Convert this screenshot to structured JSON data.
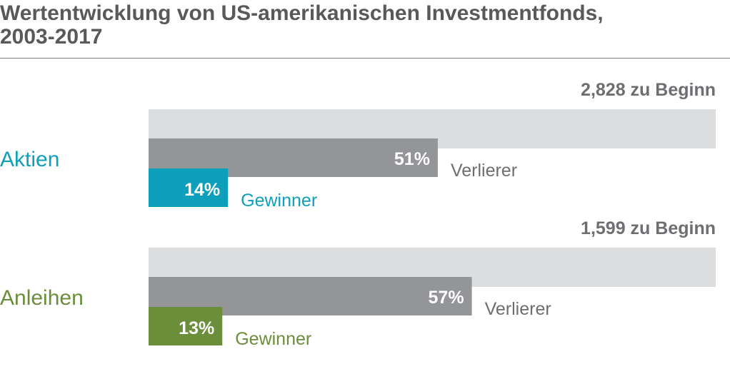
{
  "title_lines": [
    "Wertentwicklung von US-amerikanischen Investmentfonds,",
    "2003-2017"
  ],
  "colors": {
    "background_bar": "#dcdddf",
    "losers_bar": "#939598",
    "losers_text": "#6d6e71",
    "start_text": "#6d6e71"
  },
  "chart_data": {
    "type": "bar",
    "groups": [
      {
        "label": "Aktien",
        "color": "#0e9fba",
        "start_label": "2,828 zu Beginn",
        "losers_value": 51,
        "losers_value_label": "51%",
        "losers_label": "Verlierer",
        "winners_value": 14,
        "winners_value_label": "14%",
        "winners_label": "Gewinner"
      },
      {
        "label": "Anleihen",
        "color": "#6a8e3a",
        "start_label": "1,599 zu Beginn",
        "losers_value": 57,
        "losers_value_label": "57%",
        "losers_label": "Verlierer",
        "winners_value": 13,
        "winners_value_label": "13%",
        "winners_label": "Gewinner"
      }
    ],
    "value_max": 100
  }
}
